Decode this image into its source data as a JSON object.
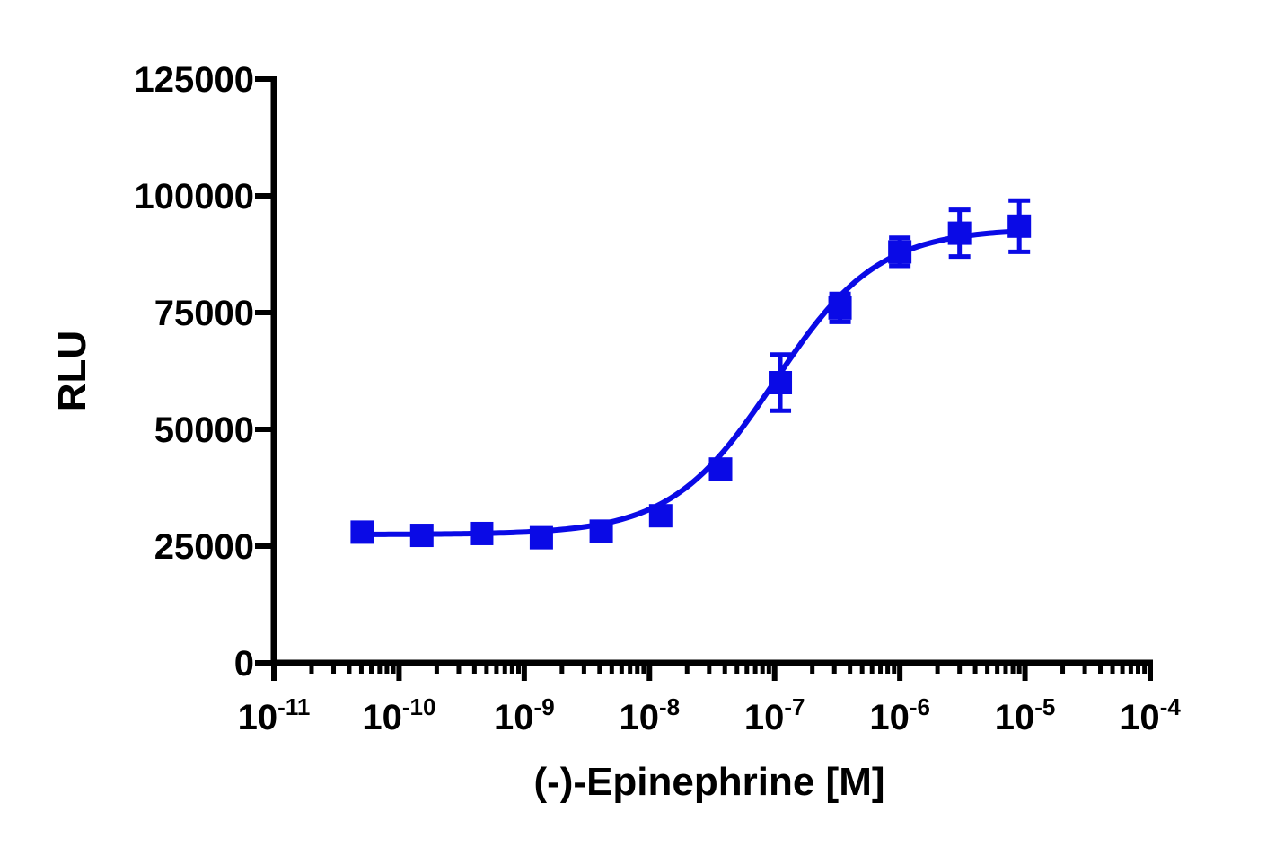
{
  "chart_data": {
    "type": "scatter",
    "title": "",
    "xlabel": "(-)-Epinephrine [M]",
    "ylabel": "RLU",
    "xscale": "log",
    "xlim": [
      1e-11,
      0.0001
    ],
    "ylim": [
      0,
      125000
    ],
    "y_ticks": [
      {
        "value": 0,
        "label": "0"
      },
      {
        "value": 25000,
        "label": "25000"
      },
      {
        "value": 50000,
        "label": "50000"
      },
      {
        "value": 75000,
        "label": "75000"
      },
      {
        "value": 100000,
        "label": "100000"
      },
      {
        "value": 125000,
        "label": "125000"
      }
    ],
    "x_ticks": [
      {
        "value": 1e-11,
        "base": "10",
        "exp": "-11"
      },
      {
        "value": 1e-10,
        "base": "10",
        "exp": "-10"
      },
      {
        "value": 1e-09,
        "base": "10",
        "exp": "-9"
      },
      {
        "value": 1e-08,
        "base": "10",
        "exp": "-8"
      },
      {
        "value": 1e-07,
        "base": "10",
        "exp": "-7"
      },
      {
        "value": 1e-06,
        "base": "10",
        "exp": "-6"
      },
      {
        "value": 1e-05,
        "base": "10",
        "exp": "-5"
      },
      {
        "value": 0.0001,
        "base": "10",
        "exp": "-4"
      }
    ],
    "grid": false,
    "series": [
      {
        "color": "#0a0ae6",
        "marker": "square",
        "x": [
          5.08e-11,
          1.52e-10,
          4.57e-10,
          1.37e-09,
          4.12e-09,
          1.23e-08,
          3.7e-08,
          1.11e-07,
          3.33e-07,
          1e-06,
          3e-06,
          9e-06
        ],
        "y": [
          28000,
          27300,
          27700,
          26800,
          28200,
          31500,
          41500,
          60000,
          76000,
          88000,
          92000,
          93500
        ],
        "err": [
          600,
          600,
          600,
          600,
          600,
          1000,
          1500,
          6000,
          3000,
          3000,
          5000,
          5500
        ]
      }
    ],
    "fit": {
      "model": "four-parameter logistic",
      "bottom": 27500,
      "top": 93000,
      "ec50": 1e-07,
      "hill": 1.05,
      "x_range": [
        5.08e-11,
        9e-06
      ]
    }
  }
}
